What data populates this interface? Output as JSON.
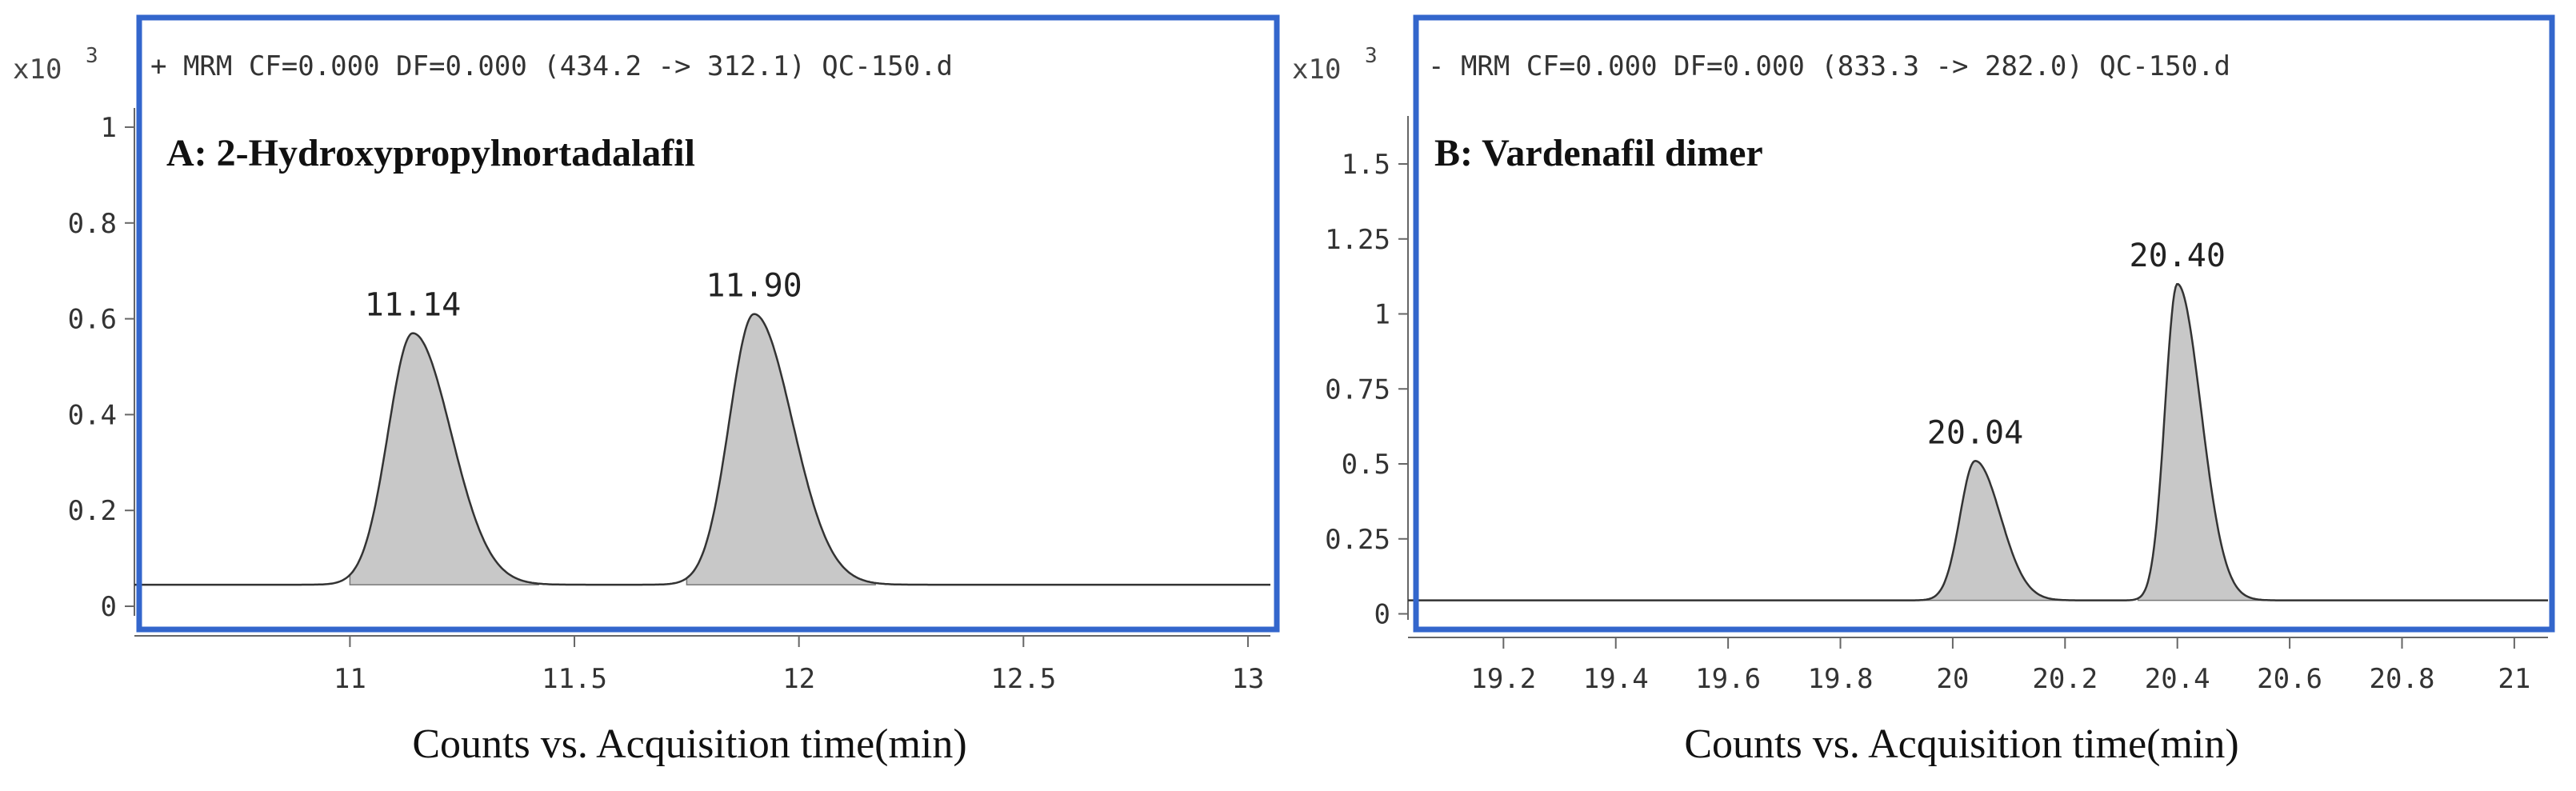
{
  "chart_data": [
    {
      "type": "line",
      "panel_label": "A: 2-Hydroxypropylnortadalafil",
      "header": "+ MRM CF=0.000 DF=0.000 (434.2 -> 312.1) QC-150.d",
      "y_multiplier": "x10",
      "y_exponent": "3",
      "xlabel": "Counts vs. Acquisition time(min)",
      "ylabel": "",
      "xlim": [
        10.52,
        13.05
      ],
      "ylim": [
        -0.02,
        1.04
      ],
      "x_ticks": [
        11,
        11.5,
        12,
        12.5,
        13
      ],
      "x_tick_labels": [
        "11",
        "11.5",
        "12",
        "12.5",
        "13"
      ],
      "y_ticks": [
        0,
        0.2,
        0.4,
        0.6,
        0.8,
        1
      ],
      "y_tick_labels": [
        "0",
        "0.2",
        "0.4",
        "0.6",
        "0.8",
        "1"
      ],
      "baseline": 0.045,
      "peaks": [
        {
          "rt": 11.14,
          "label": "11.14",
          "height": 0.57,
          "sigma_left": 0.055,
          "sigma_right": 0.085,
          "start": 11.0,
          "end": 11.42
        },
        {
          "rt": 11.9,
          "label": "11.90",
          "height": 0.61,
          "sigma_left": 0.055,
          "sigma_right": 0.085,
          "start": 11.75,
          "end": 12.17
        }
      ],
      "grid": false,
      "legend": "none"
    },
    {
      "type": "line",
      "panel_label": "B: Vardenafil dimer",
      "header": "- MRM CF=0.000 DF=0.000 (833.3 -> 282.0) QC-150.d",
      "y_multiplier": "x10",
      "y_exponent": "3",
      "xlabel": "Counts vs. Acquisition time(min)",
      "ylabel": "",
      "xlim": [
        19.03,
        21.06
      ],
      "ylim": [
        -0.02,
        1.66
      ],
      "x_ticks": [
        19.2,
        19.4,
        19.6,
        19.8,
        20,
        20.2,
        20.4,
        20.6,
        20.8,
        21
      ],
      "x_tick_labels": [
        "19.2",
        "19.4",
        "19.6",
        "19.8",
        "20",
        "20.2",
        "20.4",
        "20.6",
        "20.8",
        "21"
      ],
      "y_ticks": [
        0,
        0.25,
        0.5,
        0.75,
        1,
        1.25,
        1.5
      ],
      "y_tick_labels": [
        "0",
        "0.25",
        "0.5",
        "0.75",
        "1",
        "1.25",
        "1.5"
      ],
      "baseline": 0.045,
      "peaks": [
        {
          "rt": 20.04,
          "label": "20.04",
          "height": 0.51,
          "sigma_left": 0.027,
          "sigma_right": 0.045,
          "start": 19.95,
          "end": 20.22
        },
        {
          "rt": 20.4,
          "label": "20.40",
          "height": 1.1,
          "sigma_left": 0.022,
          "sigma_right": 0.042,
          "start": 20.33,
          "end": 20.59
        }
      ],
      "grid": false,
      "legend": "none"
    }
  ],
  "colors": {
    "frame": "#3366cc",
    "fill": "#c8c8c8",
    "trace": "#333333",
    "axis": "#666666",
    "text": "#222222"
  }
}
